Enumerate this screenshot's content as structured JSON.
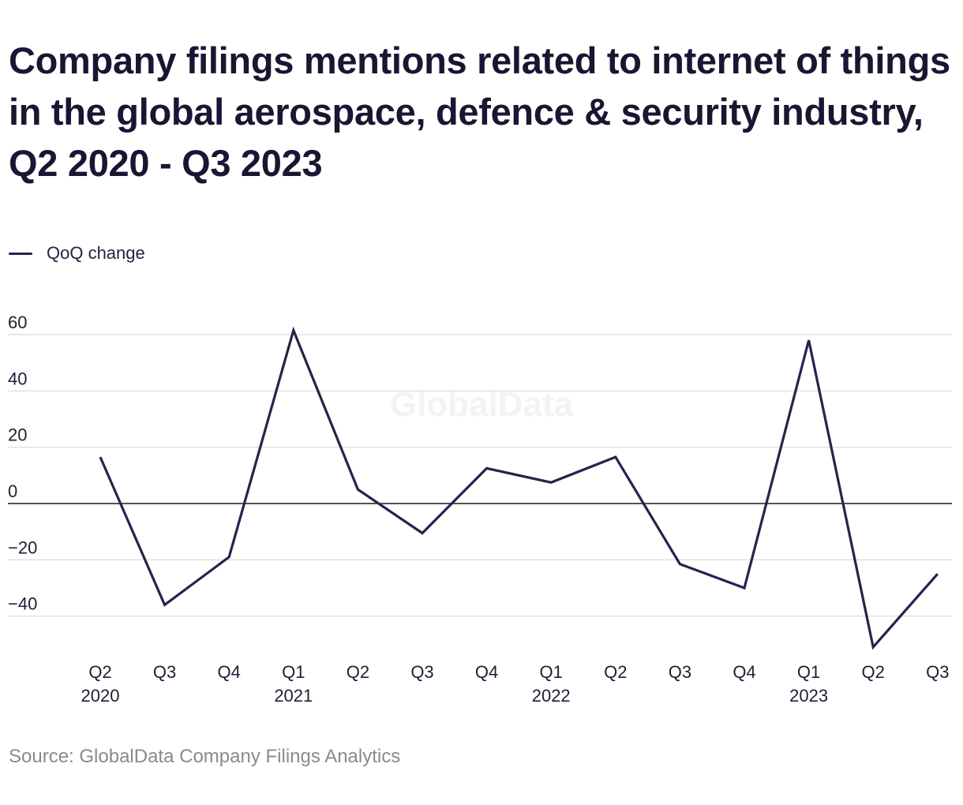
{
  "title": "Company filings mentions related to internet of things in the global aerospace, defence & security industry, Q2 2020 - Q3 2023",
  "legend": {
    "label": "QoQ change",
    "color": "#2e1f4d"
  },
  "watermark": "GlobalData",
  "source": "Source: GlobalData Company Filings Analytics",
  "chart_data": {
    "type": "line",
    "title": "Company filings mentions related to internet of things in the global aerospace, defence & security industry, Q2 2020 - Q3 2023",
    "categories": [
      "Q2 2020",
      "Q3 2020",
      "Q4 2020",
      "Q1 2021",
      "Q2 2021",
      "Q3 2021",
      "Q4 2021",
      "Q1 2022",
      "Q2 2022",
      "Q3 2022",
      "Q4 2022",
      "Q1 2023",
      "Q2 2023",
      "Q3 2023"
    ],
    "tick_labels": [
      [
        "Q2",
        "2020"
      ],
      [
        "Q3",
        ""
      ],
      [
        "Q4",
        ""
      ],
      [
        "Q1",
        "2021"
      ],
      [
        "Q2",
        ""
      ],
      [
        "Q3",
        ""
      ],
      [
        "Q4",
        ""
      ],
      [
        "Q1",
        "2022"
      ],
      [
        "Q2",
        ""
      ],
      [
        "Q3",
        ""
      ],
      [
        "Q4",
        ""
      ],
      [
        "Q1",
        "2023"
      ],
      [
        "Q2",
        ""
      ],
      [
        "Q3",
        ""
      ]
    ],
    "series": [
      {
        "name": "QoQ change",
        "values": [
          16.5,
          -36,
          -19,
          61.5,
          5,
          -10.5,
          12.5,
          7.5,
          16.5,
          -21.5,
          -30,
          58,
          -51,
          -25
        ]
      }
    ],
    "yticks": [
      60,
      40,
      20,
      0,
      -20,
      -40
    ],
    "ytick_labels": [
      "60",
      "40",
      "20",
      "0",
      "−20",
      "−40"
    ],
    "ylim": [
      -55,
      60
    ],
    "grid": true,
    "legend_position": "top-left",
    "colors": {
      "line": "#2e1f4d",
      "grid": "#d9d9d9",
      "zero_line": "#1a1a1a"
    }
  }
}
